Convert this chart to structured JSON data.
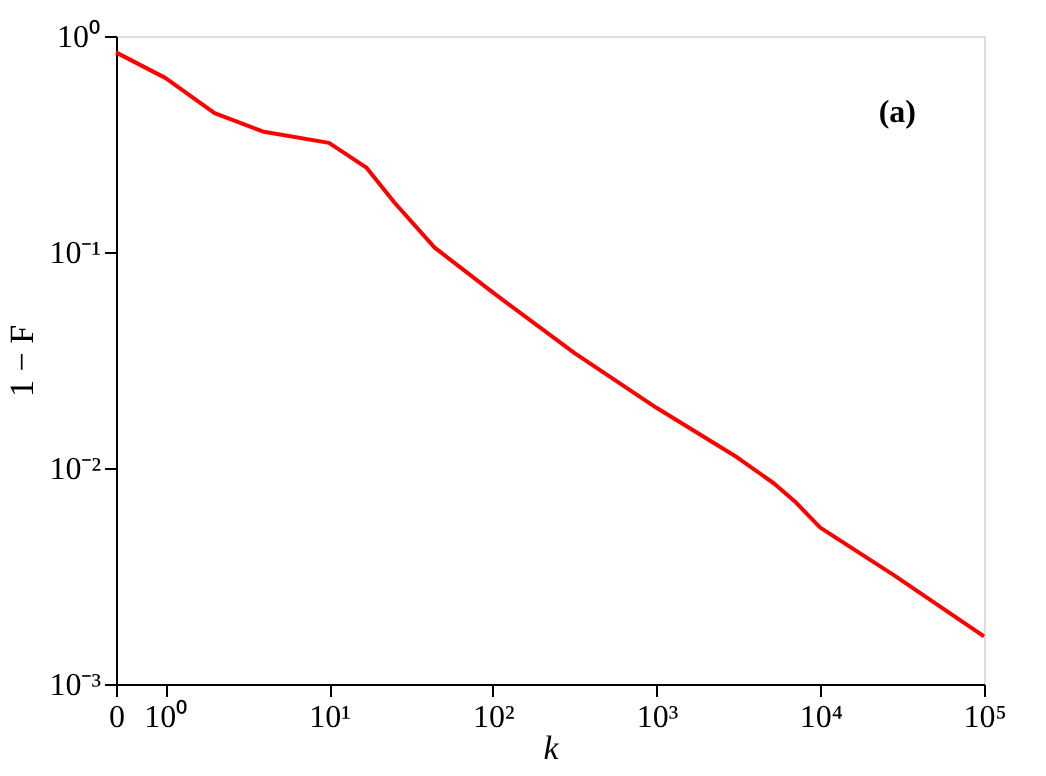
{
  "chart_data": {
    "type": "line",
    "xlabel": "k",
    "ylabel": "1 − F",
    "annotations": [
      "(a)"
    ],
    "x": [
      0.5,
      1,
      2,
      4,
      10,
      17,
      25,
      44,
      100,
      316,
      1000,
      3000,
      5200,
      7000,
      10000,
      28000,
      100000
    ],
    "series": [
      {
        "color": "#ff0000",
        "values": [
          0.84,
          0.64,
          0.44,
          0.36,
          0.32,
          0.245,
          0.17,
          0.105,
          0.065,
          0.034,
          0.019,
          0.0114,
          0.0085,
          0.007,
          0.0053,
          0.0032,
          0.00166
        ]
      }
    ],
    "log": "xy",
    "xlim": [
      0.5,
      100000
    ],
    "ylim": [
      0.001,
      1
    ],
    "xticks": [
      {
        "value": 0.5,
        "label": "0"
      },
      {
        "value": 1,
        "label": "10⁰"
      },
      {
        "value": 10,
        "label": "10¹"
      },
      {
        "value": 100,
        "label": "10²"
      },
      {
        "value": 1000,
        "label": "10³"
      },
      {
        "value": 10000,
        "label": "10⁴"
      },
      {
        "value": 100000,
        "label": "10⁵"
      }
    ],
    "yticks": [
      {
        "value": 0.001,
        "label": "10⁻³"
      },
      {
        "value": 0.01,
        "label": "10⁻²"
      },
      {
        "value": 0.1,
        "label": "10⁻¹"
      },
      {
        "value": 1,
        "label": "10⁰"
      }
    ],
    "grid": false,
    "legend": false,
    "marker": "none",
    "line_style": "solid"
  }
}
